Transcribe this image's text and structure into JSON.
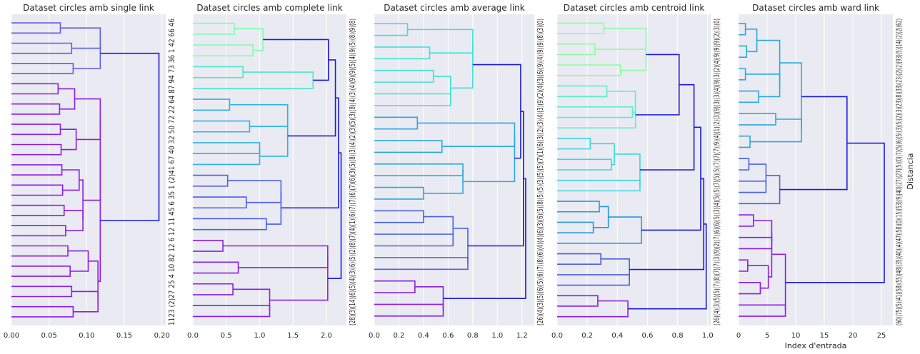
{
  "figure": {
    "x_axis_label": "Index d'entrada",
    "y_axis_label": "Distancia"
  },
  "chart_data": [
    {
      "type": "dendrogram",
      "title": "Dataset circles amb single link",
      "orientation": "left",
      "xlim": [
        0,
        0.205
      ],
      "xticks": [
        0.0,
        0.05,
        0.1,
        0.15,
        0.2
      ],
      "xtick_labels": [
        "0.00",
        "0.05",
        "0.10",
        "0.15",
        "0.20"
      ],
      "leaf_labels_text": "1123 (2)27 25 4 10 82 12 6 12 11 45 6 35 1 (2)41 67 40 32 50 72 22 64 87 94 73 36 1 42 66 46",
      "grid": true,
      "clusters": [
        {
          "color": "#5b5ee8",
          "leaves": 6,
          "merges": [
            0.065,
            0.08,
            0.082,
            0.118
          ]
        },
        {
          "color": "#8b1ee8",
          "leaves": 24,
          "merges": [
            0.062,
            0.064,
            0.065,
            0.066,
            0.067,
            0.068,
            0.07,
            0.072,
            0.075,
            0.078,
            0.08,
            0.082,
            0.084,
            0.086,
            0.09,
            0.095,
            0.102,
            0.115,
            0.118
          ]
        }
      ],
      "root_merge": 0.196
    },
    {
      "type": "dendrogram",
      "title": "Dataset circles amb complete link",
      "orientation": "left",
      "xlim": [
        0,
        2.3
      ],
      "xticks": [
        0.0,
        0.5,
        1.0,
        1.5,
        2.0
      ],
      "xtick_labels": [
        "0.0",
        "0.5",
        "1.0",
        "1.5",
        "2.0"
      ],
      "leaf_labels_text": "(28)(3)(14)(6)(5)(4)(3)(6)(5)(2)(8)(7)(4)(1)(6)(7)(7)(6)(7)(6)(3)(5)(8)(3)(4)(2)(3)(5)(3)(8)(4)(3)(4)(9)(9)(5)(4)(9)(5)(8)(9)(8)",
      "grid": true,
      "clusters": [
        {
          "color": "#7effb0",
          "leaves": 4,
          "merges": [
            0.62,
            0.9,
            1.05
          ]
        },
        {
          "color": "#4de8c8",
          "leaves": 3,
          "merges": [
            0.75,
            1.8
          ]
        },
        {
          "color": "#2db3e8",
          "leaves": 7,
          "merges": [
            0.55,
            0.85,
            1.0,
            1.42
          ]
        },
        {
          "color": "#4a5ee8",
          "leaves": 6,
          "merges": [
            0.52,
            0.8,
            1.1,
            1.32
          ]
        },
        {
          "color": "#8b1ee8",
          "leaves": 8,
          "merges": [
            0.45,
            0.68,
            0.6,
            1.15,
            2.02
          ]
        }
      ],
      "root_merge": 2.22
    },
    {
      "type": "dendrogram",
      "title": "Dataset circles amb average link",
      "orientation": "left",
      "xlim": [
        0,
        1.3
      ],
      "xticks": [
        0.0,
        0.2,
        0.4,
        0.6,
        0.8,
        1.0,
        1.2
      ],
      "xtick_labels": [
        "0.0",
        "0.2",
        "0.4",
        "0.6",
        "0.8",
        "1.0",
        "1.2"
      ],
      "leaf_labels_text": "(26)(4)(3)(5)(6)(5)(6)(7)(8)(6)(4)(4)(6)(3)(6)(5)(8)(5)(5)(3)(5)(5)(7)(1)(6)(3)(2)(3)(4)(3)(9)(2)(4)(3)(6)(9)(4)(9)(9)(8)(3)(0)",
      "grid": true,
      "clusters": [
        {
          "color": "#40e0d8",
          "leaves": 8,
          "merges": [
            0.27,
            0.45,
            0.48,
            0.62,
            0.8
          ]
        },
        {
          "color": "#2aa8e0",
          "leaves": 8,
          "merges": [
            0.35,
            0.55,
            0.72,
            0.4,
            1.14
          ]
        },
        {
          "color": "#4a62e8",
          "leaves": 6,
          "merges": [
            0.4,
            0.64,
            0.76,
            0.3
          ]
        },
        {
          "color": "#8b1ee8",
          "leaves": 4,
          "merges": [
            0.33,
            0.56,
            0.25
          ]
        }
      ],
      "root_merge": 1.23
    },
    {
      "type": "dendrogram",
      "title": "Dataset circles amb centroid link",
      "orientation": "left",
      "xlim": [
        0,
        1.02
      ],
      "xticks": [
        0.0,
        0.2,
        0.4,
        0.6,
        0.8,
        1.0
      ],
      "xtick_labels": [
        "0.0",
        "0.2",
        "0.4",
        "0.6",
        "0.8",
        "1.0"
      ],
      "leaf_labels_text": "(26)(4)(3)(5)(5)(7)(8)(7)(7)(3)(9)(2)(7)(6)(6)(5)(3)(4)(5)(5)(7)(5)(5)(7)(7)(7)(9)(4)(1)(2)(3)(9)(3)(3)(4)(9)(3)(2)(4)(9)(9)(9)(2)(3)(0)",
      "grid": true,
      "clusters": [
        {
          "color": "#8cffa0",
          "leaves": 6,
          "merges": [
            0.31,
            0.25,
            0.42,
            0.59
          ]
        },
        {
          "color": "#55f2c8",
          "leaves": 5,
          "merges": [
            0.33,
            0.5,
            0.52
          ]
        },
        {
          "color": "#38d8e0",
          "leaves": 6,
          "merges": [
            0.22,
            0.36,
            0.55,
            0.38
          ]
        },
        {
          "color": "#2898e0",
          "leaves": 5,
          "merges": [
            0.28,
            0.24,
            0.34,
            0.56
          ]
        },
        {
          "color": "#4a5ee8",
          "leaves": 4,
          "merges": [
            0.29,
            0.48
          ]
        },
        {
          "color": "#8b1ee8",
          "leaves": 3,
          "merges": [
            0.27,
            0.47
          ]
        }
      ],
      "root_merge": 0.99
    },
    {
      "type": "dendrogram",
      "title": "Dataset circles amb ward link",
      "orientation": "left",
      "xlim": [
        0,
        27
      ],
      "xticks": [
        0,
        5,
        10,
        15,
        20,
        25
      ],
      "xtick_labels": [
        "0",
        "5",
        "10",
        "15",
        "20",
        "25"
      ],
      "leaf_labels_text": "(60)(75)(5)(41)(58)(55)(48)(35)(40)(4)(47)(58)(0)(15)(53)(9)(40)(27)(27)(5)(0)(7)(5)(6)(5)(3)(5)(2)(3)(23)(8)(33)(23)(2)(2)(93)(5)(14)(2)(2)(62)",
      "grid": true,
      "clusters": [
        {
          "color": "#2aa8e0",
          "leaves": 12,
          "merges": [
            1.2,
            1.4,
            1.2,
            3.5,
            6.5,
            2.0,
            3.2,
            7.2,
            11.0
          ]
        },
        {
          "color": "#4a62e8",
          "leaves": 5,
          "merges": [
            1.8,
            4.8,
            2.4,
            7.2
          ]
        },
        {
          "color": "#8b1ee8",
          "leaves": 10,
          "merges": [
            2.6,
            5.8,
            1.6,
            3.8,
            8.2,
            2.2,
            5.2,
            2.0,
            5.4,
            16.2
          ]
        }
      ],
      "root_merge": 25.5
    }
  ]
}
